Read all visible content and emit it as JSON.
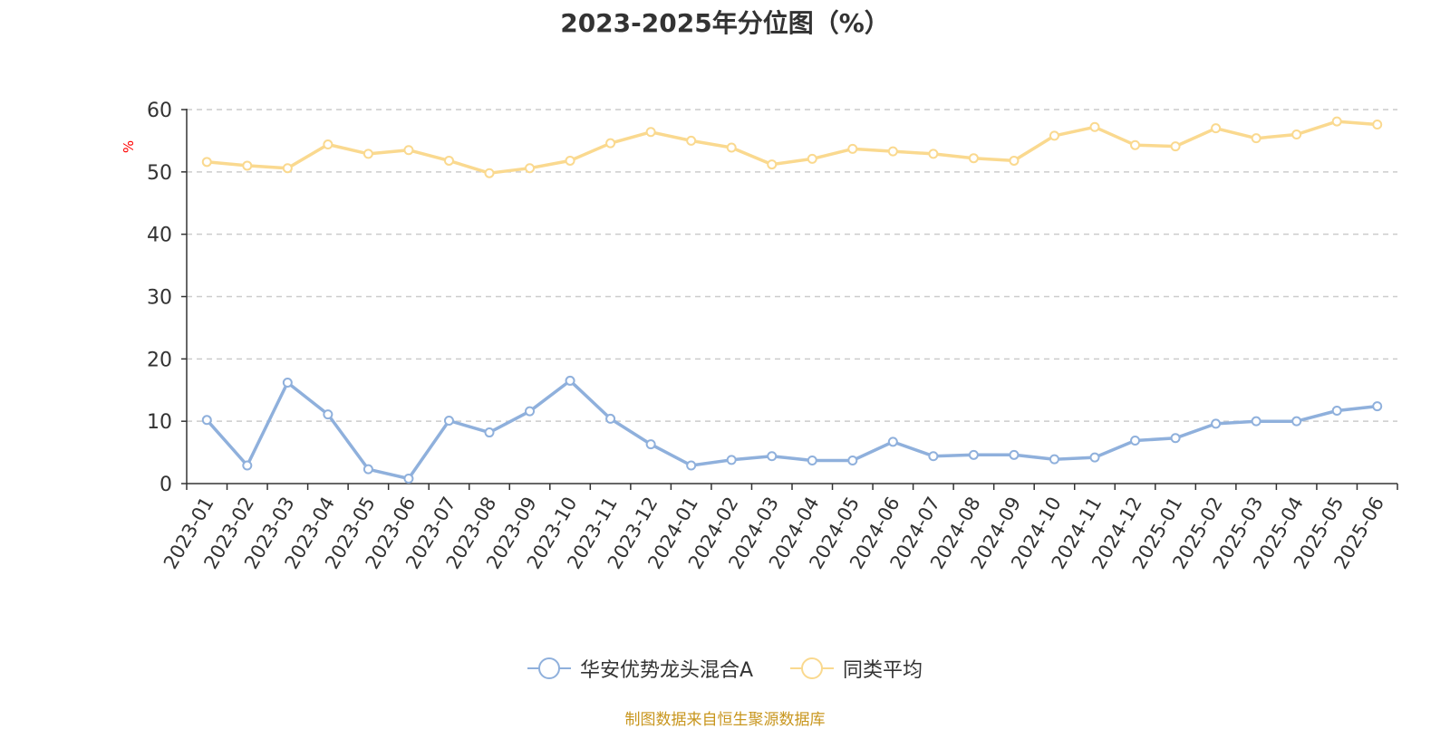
{
  "chart_data": {
    "type": "line",
    "title": "2023-2025年分位图（%）",
    "ylabel": "%",
    "ylim": [
      0,
      60
    ],
    "yticks": [
      0,
      10,
      20,
      30,
      40,
      50,
      60
    ],
    "grid": true,
    "legend_position": "bottom",
    "categories": [
      "2023-01",
      "2023-02",
      "2023-03",
      "2023-04",
      "2023-05",
      "2023-06",
      "2023-07",
      "2023-08",
      "2023-09",
      "2023-10",
      "2023-11",
      "2023-12",
      "2024-01",
      "2024-02",
      "2024-03",
      "2024-04",
      "2024-05",
      "2024-06",
      "2024-07",
      "2024-08",
      "2024-09",
      "2024-10",
      "2024-11",
      "2024-12",
      "2025-01",
      "2025-02",
      "2025-03",
      "2025-04",
      "2025-05",
      "2025-06"
    ],
    "series": [
      {
        "name": "华安优势龙头混合A",
        "color": "#8fb0dc",
        "values": [
          10.2,
          2.9,
          16.2,
          11.1,
          2.3,
          0.8,
          10.1,
          8.2,
          11.6,
          16.5,
          10.4,
          6.3,
          2.9,
          3.8,
          4.4,
          3.7,
          3.7,
          6.7,
          4.4,
          4.6,
          4.6,
          3.9,
          4.2,
          6.9,
          7.3,
          9.6,
          10.0,
          10.0,
          11.7,
          12.4
        ]
      },
      {
        "name": "同类平均",
        "color": "#fad98f",
        "values": [
          51.6,
          51.0,
          50.6,
          54.4,
          52.9,
          53.5,
          51.8,
          49.8,
          50.6,
          51.8,
          54.6,
          56.4,
          55.0,
          53.9,
          51.2,
          52.1,
          53.7,
          53.3,
          52.9,
          52.2,
          51.8,
          55.8,
          57.2,
          54.3,
          54.1,
          57.0,
          55.4,
          56.0,
          58.1,
          57.6
        ]
      }
    ]
  },
  "source_note": "制图数据来自恒生聚源数据库"
}
